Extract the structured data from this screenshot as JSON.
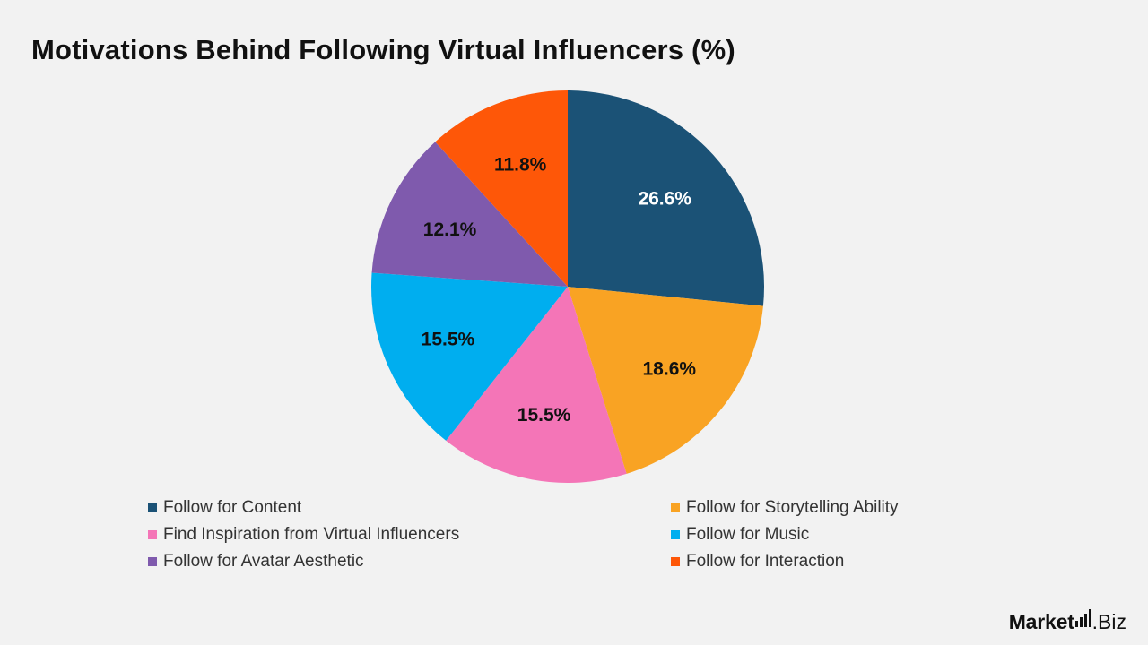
{
  "title": "Motivations Behind Following Virtual Influencers (%)",
  "chart_data": {
    "type": "pie",
    "title": "Motivations Behind Following Virtual Influencers (%)",
    "start_angle_deg": 0,
    "direction": "clockwise",
    "legend_position": "bottom",
    "slices": [
      {
        "label": "Follow for Content",
        "value": 26.6,
        "display": "26.6%",
        "color": "#1b5276",
        "text_color": "#ffffff"
      },
      {
        "label": "Follow for Storytelling Ability",
        "value": 18.6,
        "display": "18.6%",
        "color": "#f9a323",
        "text_color": "#111111"
      },
      {
        "label": "Find Inspiration from Virtual Influencers",
        "value": 15.5,
        "display": "15.5%",
        "color": "#f475b7",
        "text_color": "#111111"
      },
      {
        "label": "Follow for Music",
        "value": 15.5,
        "display": "15.5%",
        "color": "#00aeef",
        "text_color": "#111111"
      },
      {
        "label": "Follow for Avatar Aesthetic",
        "value": 12.1,
        "display": "12.1%",
        "color": "#7f5aad",
        "text_color": "#111111"
      },
      {
        "label": "Follow for Interaction",
        "value": 11.8,
        "display": "11.8%",
        "color": "#fe5708",
        "text_color": "#111111"
      }
    ]
  },
  "legend": {
    "items": [
      {
        "label": "Follow for Content",
        "color": "#1b5276"
      },
      {
        "label": "Follow for Storytelling Ability",
        "color": "#f9a323"
      },
      {
        "label": "Find Inspiration from Virtual Influencers",
        "color": "#f475b7"
      },
      {
        "label": "Follow for Music",
        "color": "#00aeef"
      },
      {
        "label": "Follow for Avatar Aesthetic",
        "color": "#7f5aad"
      },
      {
        "label": "Follow for Interaction",
        "color": "#fe5708"
      }
    ]
  },
  "logo": {
    "brand": "Market",
    "suffix": ".Biz",
    "icon": "bar-chart-icon"
  }
}
